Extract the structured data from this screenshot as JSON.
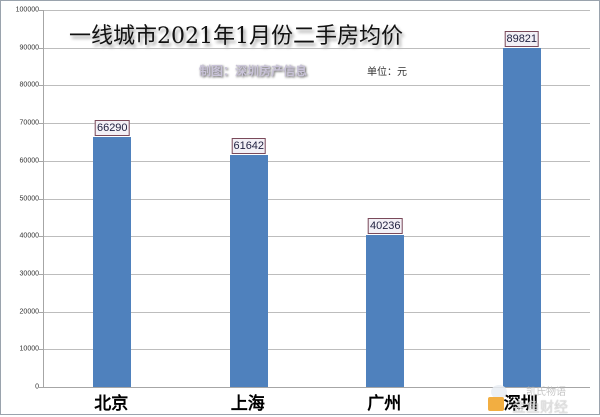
{
  "chart_data": {
    "type": "bar",
    "title": "一线城市2021年1月份二手房均价",
    "subtitle": "制图：深圳房产信息",
    "unit_label": "单位：元",
    "categories": [
      "北京",
      "上海",
      "广州",
      "深圳"
    ],
    "values": [
      66290,
      61642,
      40236,
      89821
    ],
    "value_labels": [
      "66290",
      "61642",
      "40236",
      "89821"
    ],
    "xlabel": "",
    "ylabel": "",
    "ylim": [
      0,
      100000
    ],
    "yticks": [
      "0",
      "10000",
      "20000",
      "30000",
      "40000",
      "50000",
      "60000",
      "70000",
      "80000",
      "90000",
      "100000"
    ],
    "grid": true,
    "legend": null,
    "bar_color": "#4f81bd"
  },
  "watermark": {
    "line1": "凯氏物语",
    "line2": "金鱼财经"
  }
}
